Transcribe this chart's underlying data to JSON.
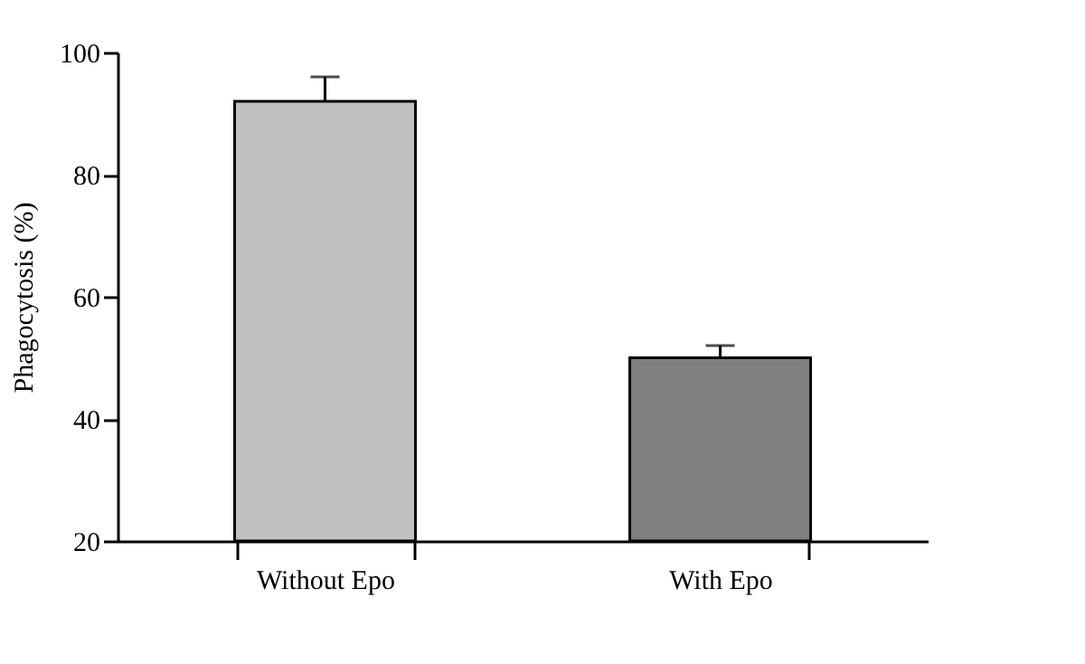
{
  "chart_data": {
    "type": "bar",
    "ylabel": "Phagocytosis (%)",
    "categories": [
      "Without Epo",
      "With Epo"
    ],
    "values": [
      92,
      50
    ],
    "colors": [
      "#c0c0c0",
      "#808080"
    ],
    "errors": [
      [
        92,
        96
      ],
      [
        50,
        52
      ]
    ],
    "ylim": [
      20,
      100
    ],
    "yticks": [
      20,
      40,
      60,
      80,
      100
    ],
    "grid": false
  }
}
